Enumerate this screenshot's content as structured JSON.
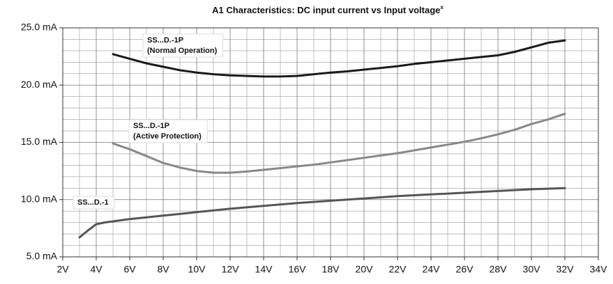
{
  "chart_data": {
    "type": "line",
    "title": "A1 Characteristics: DC input current vs Input voltage",
    "title_superscript": "x",
    "xlim": [
      2,
      34
    ],
    "xticks": [
      {
        "value": 2,
        "label": "2V"
      },
      {
        "value": 4,
        "label": "4V"
      },
      {
        "value": 6,
        "label": "6V"
      },
      {
        "value": 8,
        "label": "8V"
      },
      {
        "value": 10,
        "label": "10V"
      },
      {
        "value": 12,
        "label": "12V"
      },
      {
        "value": 14,
        "label": "14V"
      },
      {
        "value": 16,
        "label": "16V"
      },
      {
        "value": 18,
        "label": "18V"
      },
      {
        "value": 20,
        "label": "20V"
      },
      {
        "value": 22,
        "label": "22V"
      },
      {
        "value": 24,
        "label": "24V"
      },
      {
        "value": 26,
        "label": "26V"
      },
      {
        "value": 28,
        "label": "28V"
      },
      {
        "value": 30,
        "label": "30V"
      },
      {
        "value": 32,
        "label": "32V"
      },
      {
        "value": 34,
        "label": "34V"
      }
    ],
    "ylim": [
      5,
      25
    ],
    "yticks": [
      {
        "value": 5,
        "label": "5.0 mA"
      },
      {
        "value": 10,
        "label": "10.0 mA"
      },
      {
        "value": 15,
        "label": "15.0 mA"
      },
      {
        "value": 20,
        "label": "20.0 mA"
      },
      {
        "value": 25,
        "label": "25.0 mA"
      }
    ],
    "grid": true,
    "minor_grid_divisions": {
      "x": 2,
      "y": 5
    },
    "series": [
      {
        "name": "SS...D.-1P",
        "note": "(Normal Operation)",
        "color": "#1a1a1a",
        "x": [
          5,
          6,
          7,
          8,
          9,
          10,
          11,
          12,
          13,
          14,
          15,
          16,
          17,
          18,
          19,
          20,
          21,
          22,
          23,
          24,
          25,
          26,
          27,
          28,
          29,
          30,
          31,
          32
        ],
        "values": [
          22.7,
          22.3,
          21.9,
          21.6,
          21.3,
          21.1,
          20.95,
          20.85,
          20.8,
          20.75,
          20.75,
          20.8,
          20.95,
          21.1,
          21.2,
          21.35,
          21.5,
          21.65,
          21.85,
          22.0,
          22.15,
          22.3,
          22.45,
          22.6,
          22.9,
          23.3,
          23.7,
          23.9
        ]
      },
      {
        "name": "SS...D.-1P",
        "note": "(Active Protection)",
        "color": "#888888",
        "x": [
          5,
          6,
          7,
          8,
          9,
          10,
          11,
          12,
          13,
          14,
          15,
          16,
          17,
          18,
          19,
          20,
          21,
          22,
          23,
          24,
          25,
          26,
          27,
          28,
          29,
          30,
          31,
          32
        ],
        "values": [
          14.9,
          14.4,
          13.8,
          13.2,
          12.8,
          12.5,
          12.35,
          12.35,
          12.45,
          12.6,
          12.75,
          12.9,
          13.05,
          13.25,
          13.45,
          13.65,
          13.85,
          14.05,
          14.3,
          14.55,
          14.8,
          15.05,
          15.35,
          15.7,
          16.1,
          16.6,
          17.0,
          17.5
        ]
      },
      {
        "name": "SS...D.-1",
        "color": "#555555",
        "x": [
          3,
          3.5,
          4,
          4.5,
          5,
          6,
          8,
          10,
          12,
          14,
          16,
          18,
          20,
          22,
          24,
          26,
          28,
          30,
          32
        ],
        "values": [
          6.7,
          7.3,
          7.85,
          8.0,
          8.1,
          8.3,
          8.6,
          8.9,
          9.2,
          9.45,
          9.7,
          9.9,
          10.1,
          10.3,
          10.45,
          10.6,
          10.75,
          10.9,
          11.0
        ]
      }
    ]
  }
}
